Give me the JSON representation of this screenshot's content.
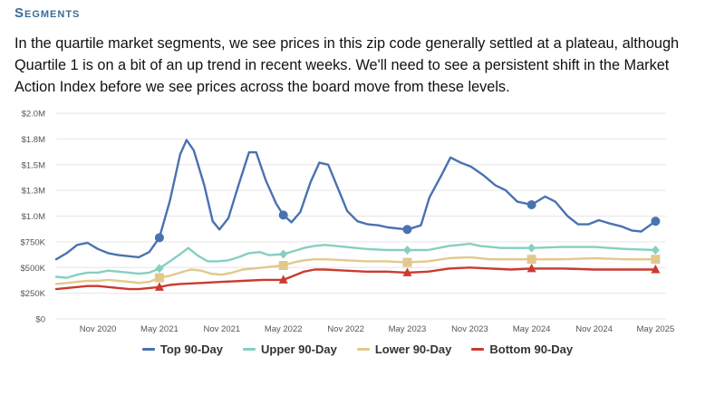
{
  "section": {
    "title": "Segments",
    "description": "In the quartile market segments, we see prices in this zip code generally settled at a plateau, although Quartile 1 is on a bit of an up trend in recent weeks. We'll need to see a persistent shift in the Market Action Index before we see prices across the board move from these levels."
  },
  "chart_data": {
    "type": "line",
    "title": "",
    "xlabel": "",
    "ylabel": "",
    "ylim": [
      0,
      2000000
    ],
    "yticks": [
      0,
      250000,
      500000,
      750000,
      1000000,
      1250000,
      1500000,
      1750000,
      2000000
    ],
    "ytick_labels": [
      "$0",
      "$250K",
      "$500K",
      "$750K",
      "$1.0M",
      "$1.3M",
      "$1.5M",
      "$1.8M",
      "$2.0M"
    ],
    "xlim": [
      "2020-07-01",
      "2025-06-01"
    ],
    "xticks": [
      "2020-11-01",
      "2021-05-01",
      "2021-11-01",
      "2022-05-01",
      "2022-11-01",
      "2023-05-01",
      "2023-11-01",
      "2024-05-01",
      "2024-11-01",
      "2025-05-01"
    ],
    "xtick_labels": [
      "Nov 2020",
      "May 2021",
      "Nov 2021",
      "May 2022",
      "Nov 2022",
      "May 2023",
      "Nov 2023",
      "May 2024",
      "Nov 2024",
      "May 2025"
    ],
    "grid": "horizontal",
    "legend_position": "bottom",
    "series": [
      {
        "name": "Top 90-Day",
        "color": "#4a72b0",
        "marker": "circle",
        "markers_at": [
          "2021-05-01",
          "2022-05-01",
          "2023-05-01",
          "2024-05-01",
          "2025-05-01"
        ],
        "points": [
          [
            "2020-07-01",
            580000
          ],
          [
            "2020-08-01",
            640000
          ],
          [
            "2020-09-01",
            720000
          ],
          [
            "2020-10-01",
            740000
          ],
          [
            "2020-11-01",
            680000
          ],
          [
            "2020-12-01",
            640000
          ],
          [
            "2021-01-01",
            620000
          ],
          [
            "2021-02-01",
            610000
          ],
          [
            "2021-03-01",
            600000
          ],
          [
            "2021-04-01",
            650000
          ],
          [
            "2021-05-01",
            790000
          ],
          [
            "2021-06-01",
            1150000
          ],
          [
            "2021-07-01",
            1600000
          ],
          [
            "2021-07-20",
            1740000
          ],
          [
            "2021-08-10",
            1640000
          ],
          [
            "2021-09-10",
            1300000
          ],
          [
            "2021-10-05",
            950000
          ],
          [
            "2021-10-25",
            870000
          ],
          [
            "2021-11-20",
            980000
          ],
          [
            "2021-12-20",
            1300000
          ],
          [
            "2022-01-20",
            1620000
          ],
          [
            "2022-02-10",
            1620000
          ],
          [
            "2022-03-10",
            1350000
          ],
          [
            "2022-04-10",
            1120000
          ],
          [
            "2022-05-01",
            1010000
          ],
          [
            "2022-05-25",
            940000
          ],
          [
            "2022-06-20",
            1040000
          ],
          [
            "2022-07-20",
            1330000
          ],
          [
            "2022-08-15",
            1520000
          ],
          [
            "2022-09-10",
            1500000
          ],
          [
            "2022-10-10",
            1260000
          ],
          [
            "2022-11-05",
            1050000
          ],
          [
            "2022-12-05",
            950000
          ],
          [
            "2023-01-05",
            920000
          ],
          [
            "2023-02-05",
            910000
          ],
          [
            "2023-03-05",
            890000
          ],
          [
            "2023-05-01",
            870000
          ],
          [
            "2023-06-10",
            910000
          ],
          [
            "2023-07-05",
            1180000
          ],
          [
            "2023-08-10",
            1400000
          ],
          [
            "2023-09-05",
            1570000
          ],
          [
            "2023-10-05",
            1520000
          ],
          [
            "2023-11-05",
            1480000
          ],
          [
            "2023-12-10",
            1400000
          ],
          [
            "2024-01-15",
            1300000
          ],
          [
            "2024-02-15",
            1250000
          ],
          [
            "2024-03-20",
            1140000
          ],
          [
            "2024-05-01",
            1110000
          ],
          [
            "2024-06-10",
            1190000
          ],
          [
            "2024-07-10",
            1140000
          ],
          [
            "2024-08-15",
            1000000
          ],
          [
            "2024-09-15",
            920000
          ],
          [
            "2024-10-15",
            920000
          ],
          [
            "2024-11-15",
            960000
          ],
          [
            "2024-12-15",
            930000
          ],
          [
            "2025-01-20",
            900000
          ],
          [
            "2025-02-20",
            860000
          ],
          [
            "2025-03-20",
            850000
          ],
          [
            "2025-05-01",
            950000
          ]
        ]
      },
      {
        "name": "Upper 90-Day",
        "color": "#86cfc1",
        "marker": "diamond",
        "markers_at": [
          "2021-05-01",
          "2022-05-01",
          "2023-05-01",
          "2024-05-01",
          "2025-05-01"
        ],
        "points": [
          [
            "2020-07-01",
            410000
          ],
          [
            "2020-08-01",
            400000
          ],
          [
            "2020-09-01",
            430000
          ],
          [
            "2020-10-01",
            450000
          ],
          [
            "2020-11-01",
            450000
          ],
          [
            "2020-12-01",
            470000
          ],
          [
            "2021-01-01",
            460000
          ],
          [
            "2021-02-01",
            450000
          ],
          [
            "2021-03-01",
            440000
          ],
          [
            "2021-04-01",
            450000
          ],
          [
            "2021-05-01",
            490000
          ],
          [
            "2021-06-01",
            560000
          ],
          [
            "2021-07-01",
            630000
          ],
          [
            "2021-07-25",
            690000
          ],
          [
            "2021-08-20",
            620000
          ],
          [
            "2021-09-20",
            560000
          ],
          [
            "2021-10-20",
            560000
          ],
          [
            "2021-11-20",
            570000
          ],
          [
            "2021-12-20",
            600000
          ],
          [
            "2022-01-20",
            640000
          ],
          [
            "2022-02-20",
            650000
          ],
          [
            "2022-03-20",
            620000
          ],
          [
            "2022-05-01",
            630000
          ],
          [
            "2022-06-01",
            660000
          ],
          [
            "2022-07-01",
            690000
          ],
          [
            "2022-08-01",
            710000
          ],
          [
            "2022-09-01",
            720000
          ],
          [
            "2022-10-01",
            710000
          ],
          [
            "2022-11-01",
            700000
          ],
          [
            "2022-12-01",
            690000
          ],
          [
            "2023-01-01",
            680000
          ],
          [
            "2023-03-01",
            670000
          ],
          [
            "2023-05-01",
            670000
          ],
          [
            "2023-07-01",
            670000
          ],
          [
            "2023-09-01",
            710000
          ],
          [
            "2023-10-01",
            720000
          ],
          [
            "2023-11-01",
            730000
          ],
          [
            "2023-12-01",
            710000
          ],
          [
            "2024-02-01",
            690000
          ],
          [
            "2024-05-01",
            690000
          ],
          [
            "2024-08-01",
            700000
          ],
          [
            "2024-11-01",
            700000
          ],
          [
            "2025-02-01",
            680000
          ],
          [
            "2025-05-01",
            670000
          ]
        ]
      },
      {
        "name": "Lower 90-Day",
        "color": "#e3c88d",
        "marker": "square",
        "markers_at": [
          "2021-05-01",
          "2022-05-01",
          "2023-05-01",
          "2024-05-01",
          "2025-05-01"
        ],
        "points": [
          [
            "2020-07-01",
            340000
          ],
          [
            "2020-08-01",
            350000
          ],
          [
            "2020-09-01",
            360000
          ],
          [
            "2020-10-01",
            370000
          ],
          [
            "2020-11-01",
            370000
          ],
          [
            "2020-12-01",
            380000
          ],
          [
            "2021-01-01",
            370000
          ],
          [
            "2021-02-01",
            360000
          ],
          [
            "2021-03-01",
            350000
          ],
          [
            "2021-04-01",
            360000
          ],
          [
            "2021-05-01",
            400000
          ],
          [
            "2021-06-01",
            420000
          ],
          [
            "2021-07-01",
            450000
          ],
          [
            "2021-08-01",
            480000
          ],
          [
            "2021-09-01",
            470000
          ],
          [
            "2021-10-01",
            440000
          ],
          [
            "2021-11-01",
            430000
          ],
          [
            "2021-12-01",
            450000
          ],
          [
            "2022-01-01",
            480000
          ],
          [
            "2022-02-01",
            490000
          ],
          [
            "2022-03-01",
            500000
          ],
          [
            "2022-05-01",
            520000
          ],
          [
            "2022-06-01",
            550000
          ],
          [
            "2022-07-01",
            570000
          ],
          [
            "2022-08-01",
            580000
          ],
          [
            "2022-09-01",
            580000
          ],
          [
            "2022-11-01",
            570000
          ],
          [
            "2023-01-01",
            560000
          ],
          [
            "2023-03-01",
            560000
          ],
          [
            "2023-05-01",
            550000
          ],
          [
            "2023-07-01",
            560000
          ],
          [
            "2023-09-01",
            590000
          ],
          [
            "2023-11-01",
            600000
          ],
          [
            "2024-01-01",
            580000
          ],
          [
            "2024-03-01",
            580000
          ],
          [
            "2024-05-01",
            580000
          ],
          [
            "2024-08-01",
            580000
          ],
          [
            "2024-11-01",
            590000
          ],
          [
            "2025-02-01",
            580000
          ],
          [
            "2025-05-01",
            580000
          ]
        ]
      },
      {
        "name": "Bottom 90-Day",
        "color": "#cc3a30",
        "marker": "triangle",
        "markers_at": [
          "2021-05-01",
          "2022-05-01",
          "2023-05-01",
          "2024-05-01",
          "2025-05-01"
        ],
        "points": [
          [
            "2020-07-01",
            290000
          ],
          [
            "2020-08-01",
            300000
          ],
          [
            "2020-09-01",
            310000
          ],
          [
            "2020-10-01",
            320000
          ],
          [
            "2020-11-01",
            320000
          ],
          [
            "2020-12-01",
            310000
          ],
          [
            "2021-01-01",
            300000
          ],
          [
            "2021-02-01",
            290000
          ],
          [
            "2021-03-01",
            290000
          ],
          [
            "2021-04-01",
            300000
          ],
          [
            "2021-05-01",
            310000
          ],
          [
            "2021-06-01",
            330000
          ],
          [
            "2021-07-01",
            340000
          ],
          [
            "2021-09-01",
            350000
          ],
          [
            "2021-11-01",
            360000
          ],
          [
            "2022-01-01",
            370000
          ],
          [
            "2022-03-01",
            380000
          ],
          [
            "2022-05-01",
            380000
          ],
          [
            "2022-06-01",
            420000
          ],
          [
            "2022-07-01",
            460000
          ],
          [
            "2022-08-01",
            480000
          ],
          [
            "2022-09-01",
            480000
          ],
          [
            "2022-11-01",
            470000
          ],
          [
            "2023-01-01",
            460000
          ],
          [
            "2023-03-01",
            460000
          ],
          [
            "2023-05-01",
            450000
          ],
          [
            "2023-07-01",
            460000
          ],
          [
            "2023-09-01",
            490000
          ],
          [
            "2023-11-01",
            500000
          ],
          [
            "2024-01-01",
            490000
          ],
          [
            "2024-03-01",
            480000
          ],
          [
            "2024-05-01",
            490000
          ],
          [
            "2024-08-01",
            490000
          ],
          [
            "2024-11-01",
            480000
          ],
          [
            "2025-02-01",
            480000
          ],
          [
            "2025-05-01",
            480000
          ]
        ]
      }
    ]
  }
}
